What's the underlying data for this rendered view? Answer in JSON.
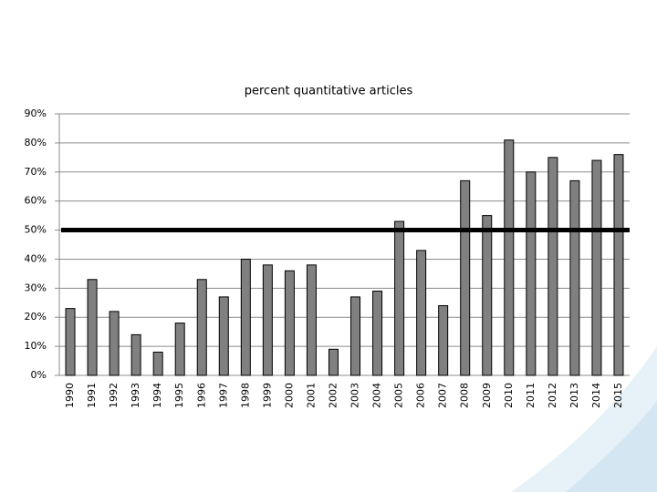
{
  "chart_data": {
    "type": "bar",
    "title": "percent quantitative articles",
    "categories": [
      "1990",
      "1991",
      "1992",
      "1993",
      "1994",
      "1995",
      "1996",
      "1997",
      "1998",
      "1999",
      "2000",
      "2001",
      "2002",
      "2003",
      "2004",
      "2005",
      "2006",
      "2007",
      "2008",
      "2009",
      "2010",
      "2011",
      "2012",
      "2013",
      "2014",
      "2015"
    ],
    "values": [
      23,
      33,
      22,
      14,
      8,
      18,
      33,
      27,
      40,
      38,
      36,
      38,
      9,
      27,
      29,
      53,
      43,
      24,
      67,
      55,
      81,
      70,
      75,
      67,
      74,
      76
    ],
    "color": "#808080",
    "ylim": [
      0,
      90
    ],
    "yticks": [
      {
        "value": 0,
        "label": "0%"
      },
      {
        "value": 10,
        "label": "10%"
      },
      {
        "value": 20,
        "label": "20%"
      },
      {
        "value": 30,
        "label": "30%"
      },
      {
        "value": 40,
        "label": "40%"
      },
      {
        "value": 50,
        "label": "50%"
      },
      {
        "value": 60,
        "label": "60%"
      },
      {
        "value": 70,
        "label": "70%"
      },
      {
        "value": 80,
        "label": "80%"
      },
      {
        "value": 90,
        "label": "90%"
      }
    ],
    "grid": true,
    "reference_line": 50
  }
}
